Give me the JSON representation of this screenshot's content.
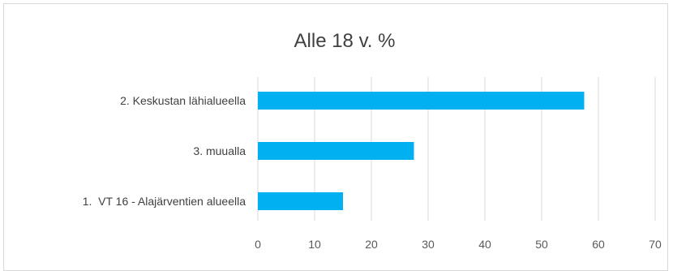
{
  "chart_data": {
    "type": "bar",
    "orientation": "horizontal",
    "title": "Alle 18 v. %",
    "categories": [
      "2. Keskustan lähialueella",
      "3. muualla",
      "1.  VT 16 - Alajärventien alueella"
    ],
    "values": [
      57.5,
      27.5,
      15
    ],
    "xlim": [
      0,
      70
    ],
    "xticks": [
      "0",
      "10",
      "20",
      "30",
      "40",
      "50",
      "60",
      "70"
    ],
    "grid": true,
    "legend": "none",
    "colors": {
      "bar": "#00b0f0",
      "grid": "#d9d9d9",
      "text": "#404040"
    }
  }
}
